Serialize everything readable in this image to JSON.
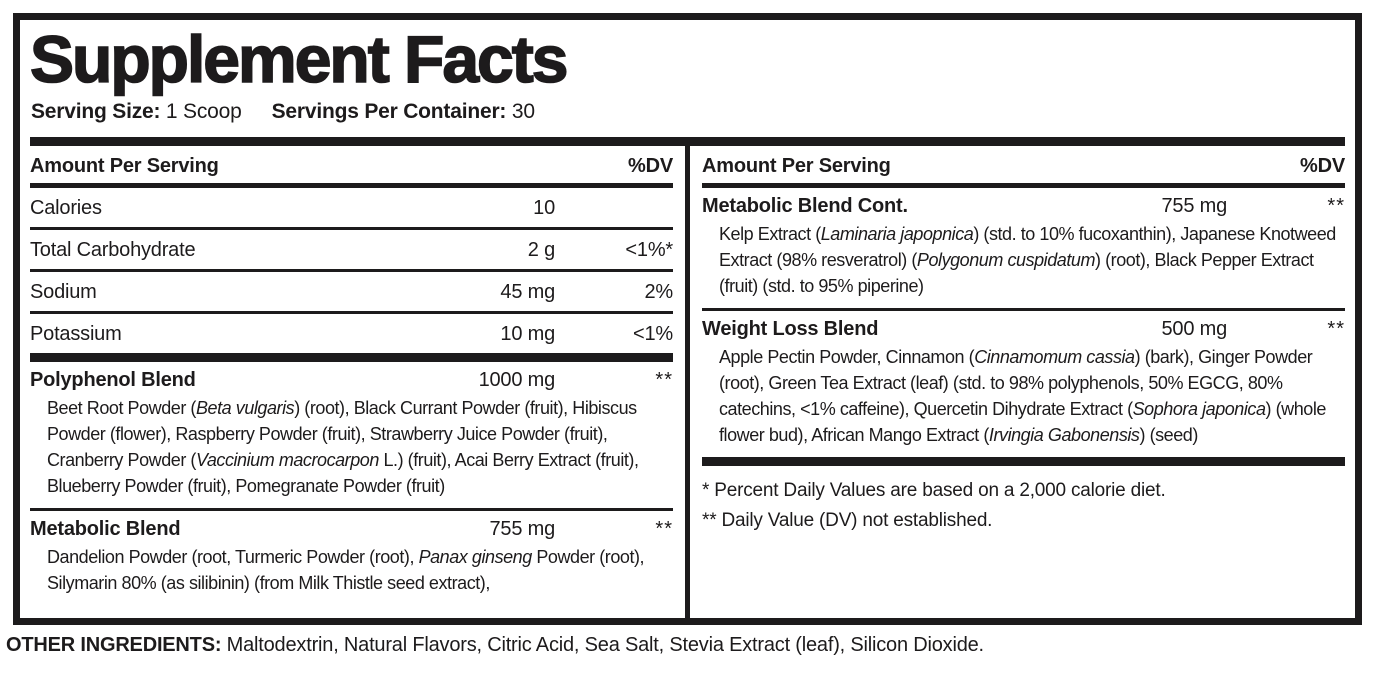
{
  "title": "Supplement Facts",
  "colors": {
    "text": "#1d1b1c",
    "background": "#ffffff",
    "rules": "#1d1b1c"
  },
  "serving": {
    "size_label": "Serving Size:",
    "size_value": " 1 Scoop",
    "per_container_label": "Servings Per Container:",
    "per_container_value": " 30"
  },
  "columns": [
    {
      "header": {
        "amount": "Amount Per Serving",
        "dv": "%DV"
      },
      "nutrients": [
        {
          "name": "Calories",
          "amount": "10",
          "dv": ""
        },
        {
          "name": "Total Carbohydrate",
          "amount": "2 g",
          "dv": "<1%*"
        },
        {
          "name": "Sodium",
          "amount": "45 mg",
          "dv": "2%"
        },
        {
          "name": "Potassium",
          "amount": "10 mg",
          "dv": "<1%"
        }
      ],
      "blends": [
        {
          "name": "Polyphenol Blend",
          "amount": "1000 mg",
          "dv": "**",
          "description": [
            {
              "t": "Beet Root Powder ("
            },
            {
              "t": "Beta vulgaris",
              "i": true
            },
            {
              "t": ") (root), Black Currant Powder (fruit), Hibiscus Powder (flower), Raspberry Powder (fruit), Strawberry Juice Powder (fruit), Cranberry Powder ("
            },
            {
              "t": "Vaccinium macrocarpon",
              "i": true
            },
            {
              "t": " L.) (fruit), Acai Berry Extract (fruit), Blueberry Powder (fruit), Pomegranate Powder (fruit)"
            }
          ]
        },
        {
          "name": "Metabolic Blend",
          "amount": "755 mg",
          "dv": "**",
          "description": [
            {
              "t": "Dandelion Powder (root, Turmeric Powder (root), "
            },
            {
              "t": "Panax ginseng",
              "i": true
            },
            {
              "t": " Powder (root), Silymarin 80% (as silibinin) (from Milk Thistle seed extract),"
            }
          ]
        }
      ]
    },
    {
      "header": {
        "amount": "Amount Per Serving",
        "dv": "%DV"
      },
      "blends": [
        {
          "name": "Metabolic Blend Cont.",
          "amount": "755 mg",
          "dv": "**",
          "description": [
            {
              "t": "Kelp Extract ("
            },
            {
              "t": "Laminaria japopnica",
              "i": true
            },
            {
              "t": ") (std. to 10% fucoxanthin), Japanese Knotweed Extract (98% resveratrol) ("
            },
            {
              "t": "Polygonum cuspidatum",
              "i": true
            },
            {
              "t": ") (root), Black Pepper Extract (fruit)  (std. to 95% piperine)"
            }
          ]
        },
        {
          "name": "Weight Loss Blend",
          "amount": "500 mg",
          "dv": "**",
          "description": [
            {
              "t": "Apple Pectin Powder, Cinnamon ("
            },
            {
              "t": "Cinnamomum cassia",
              "i": true
            },
            {
              "t": ") (bark), Ginger Powder (root), Green Tea Extract (leaf) (std. to 98% polyphenols, 50% EGCG, 80% catechins, <1% caffeine), Quercetin Dihydrate Extract ("
            },
            {
              "t": "Sophora japonica",
              "i": true
            },
            {
              "t": ") (whole flower bud), African Mango Extract ("
            },
            {
              "t": "Irvingia Gabonensis",
              "i": true
            },
            {
              "t": ") (seed)"
            }
          ]
        }
      ],
      "footnotes": [
        "* Percent Daily Values are based on a 2,000 calorie diet.",
        "** Daily Value (DV) not established."
      ]
    }
  ],
  "other_ingredients": {
    "label": "OTHER INGREDIENTS:",
    "text": " Maltodextrin, Natural Flavors, Citric Acid, Sea Salt, Stevia Extract (leaf), Silicon Dioxide."
  }
}
